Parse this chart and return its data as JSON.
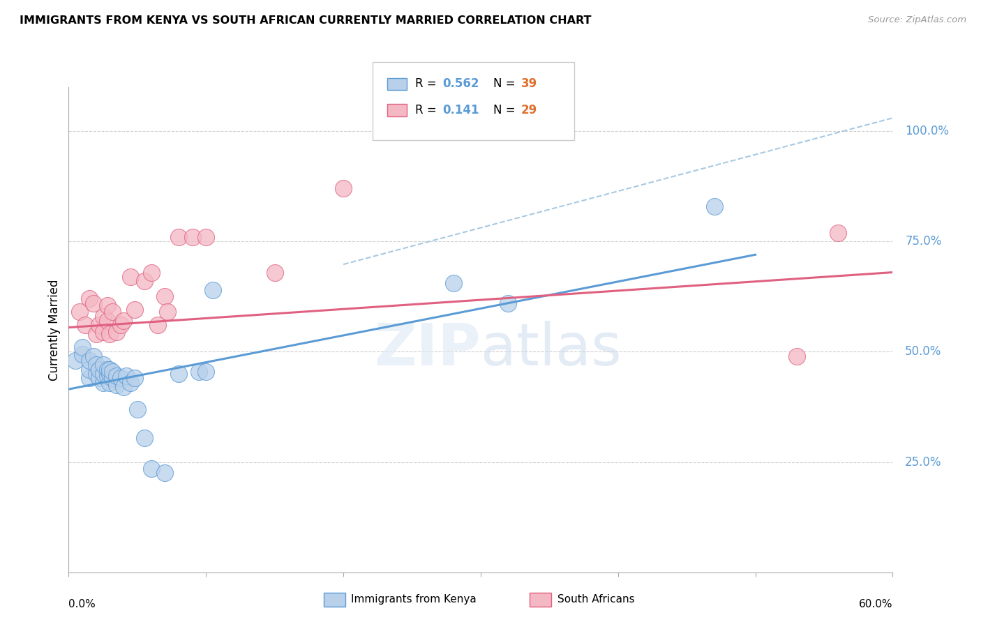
{
  "title": "IMMIGRANTS FROM KENYA VS SOUTH AFRICAN CURRENTLY MARRIED CORRELATION CHART",
  "source": "Source: ZipAtlas.com",
  "ylabel": "Currently Married",
  "ytick_labels": [
    "25.0%",
    "50.0%",
    "75.0%",
    "100.0%"
  ],
  "ytick_values": [
    0.25,
    0.5,
    0.75,
    1.0
  ],
  "xmin": 0.0,
  "xmax": 0.6,
  "ymin": 0.0,
  "ymax": 1.1,
  "blue_color": "#b8d0ea",
  "blue_line_color": "#5b9bd5",
  "blue_dash_color": "#9ec4e0",
  "pink_color": "#f4b8c4",
  "pink_line_color": "#e06080",
  "kenya_x": [
    0.005,
    0.01,
    0.01,
    0.015,
    0.015,
    0.015,
    0.018,
    0.02,
    0.02,
    0.022,
    0.022,
    0.025,
    0.025,
    0.025,
    0.028,
    0.028,
    0.03,
    0.03,
    0.03,
    0.032,
    0.032,
    0.035,
    0.035,
    0.038,
    0.04,
    0.042,
    0.045,
    0.048,
    0.05,
    0.055,
    0.06,
    0.07,
    0.08,
    0.095,
    0.1,
    0.105,
    0.28,
    0.32,
    0.47
  ],
  "kenya_y": [
    0.48,
    0.495,
    0.51,
    0.44,
    0.46,
    0.48,
    0.49,
    0.45,
    0.47,
    0.44,
    0.46,
    0.43,
    0.45,
    0.47,
    0.445,
    0.46,
    0.43,
    0.45,
    0.46,
    0.44,
    0.455,
    0.425,
    0.445,
    0.44,
    0.42,
    0.445,
    0.43,
    0.44,
    0.37,
    0.305,
    0.235,
    0.225,
    0.45,
    0.455,
    0.455,
    0.64,
    0.655,
    0.61,
    0.83
  ],
  "sa_x": [
    0.008,
    0.012,
    0.015,
    0.018,
    0.02,
    0.022,
    0.025,
    0.025,
    0.028,
    0.028,
    0.03,
    0.032,
    0.035,
    0.038,
    0.04,
    0.045,
    0.048,
    0.055,
    0.06,
    0.065,
    0.07,
    0.072,
    0.08,
    0.09,
    0.1,
    0.15,
    0.2,
    0.53,
    0.56
  ],
  "sa_y": [
    0.59,
    0.56,
    0.62,
    0.61,
    0.54,
    0.56,
    0.545,
    0.58,
    0.57,
    0.605,
    0.54,
    0.59,
    0.545,
    0.56,
    0.57,
    0.67,
    0.595,
    0.66,
    0.68,
    0.56,
    0.625,
    0.59,
    0.76,
    0.76,
    0.76,
    0.68,
    0.87,
    0.49,
    0.77
  ],
  "blue_line_x0": 0.0,
  "blue_line_y0": 0.415,
  "blue_line_x1": 0.5,
  "blue_line_y1": 0.72,
  "pink_line_x0": 0.0,
  "pink_line_y0": 0.555,
  "pink_line_x1": 0.6,
  "pink_line_y1": 0.68,
  "dash_line_x0": 0.2,
  "dash_line_y0": 0.698,
  "dash_line_x1": 0.6,
  "dash_line_y1": 1.03
}
